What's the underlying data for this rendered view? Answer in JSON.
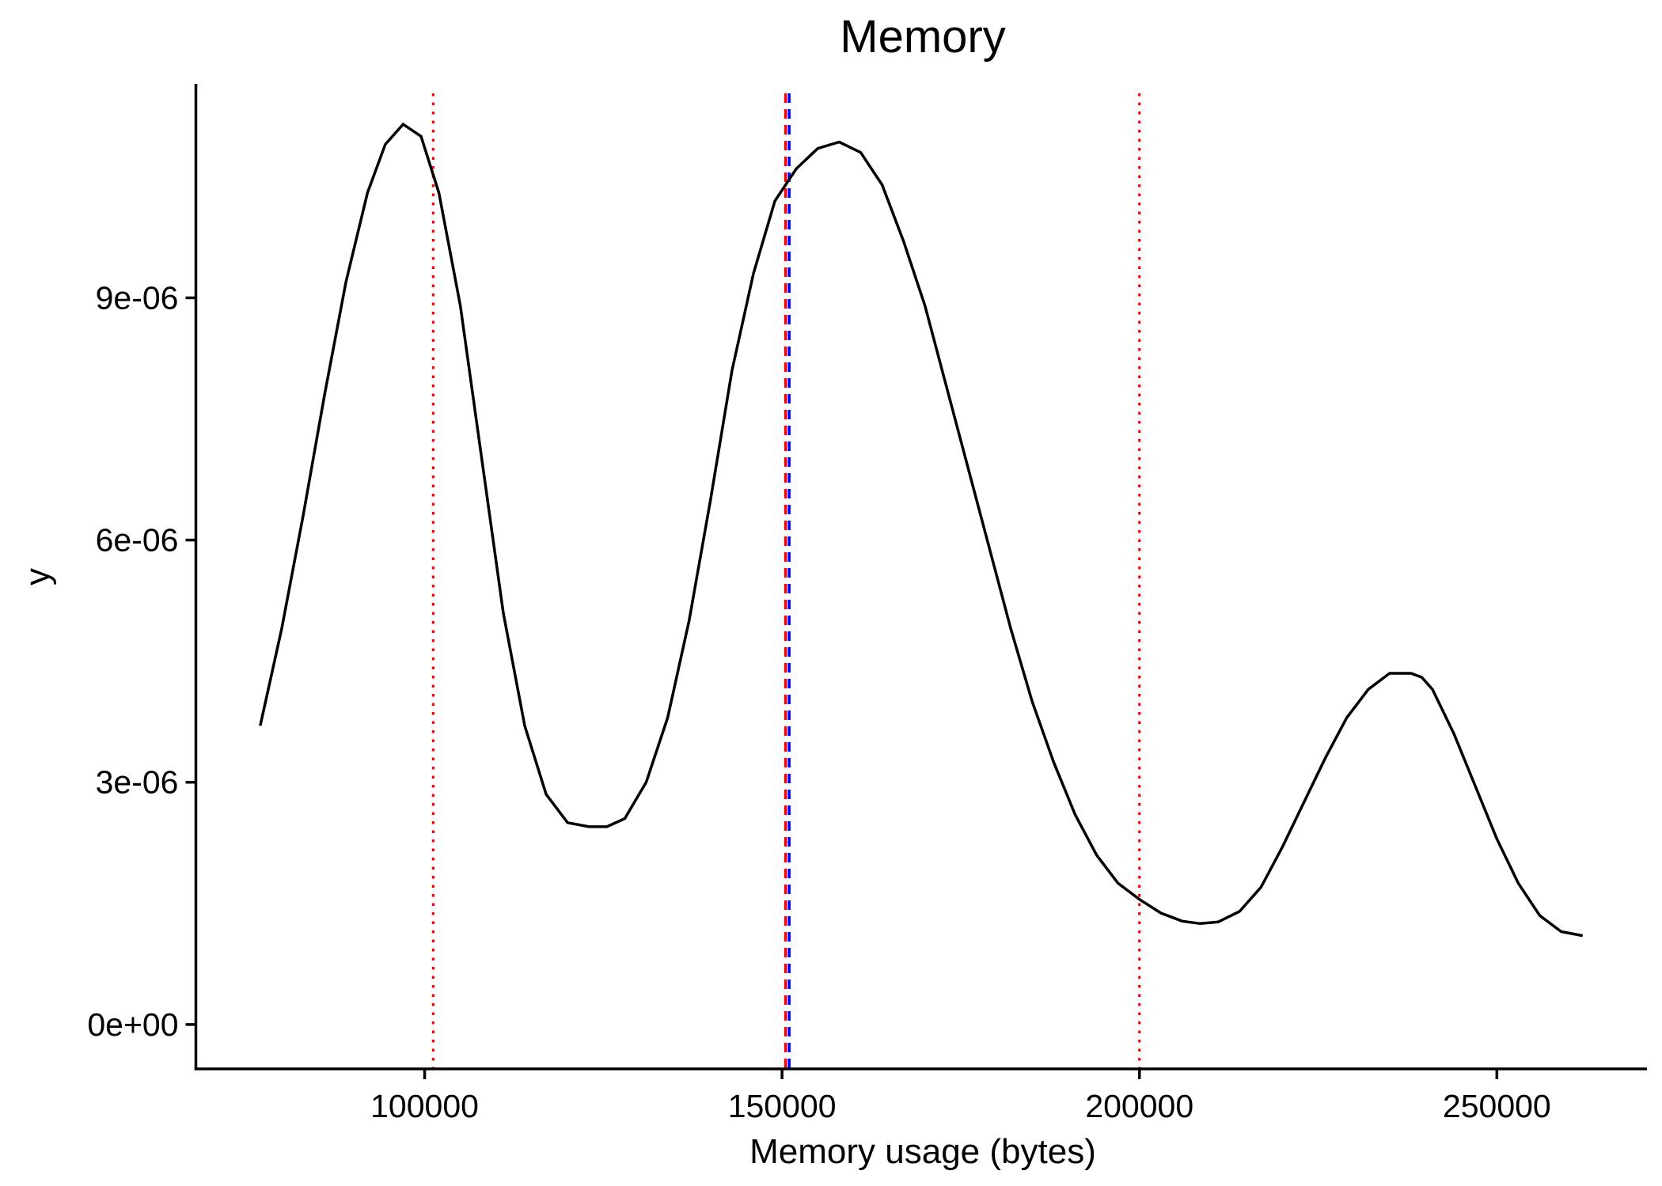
{
  "chart_data": {
    "type": "line",
    "title": "Memory",
    "xlabel": "Memory usage (bytes)",
    "ylabel": "y",
    "xlim": [
      68000,
      271000
    ],
    "ylim": [
      -5.5e-07,
      1.165e-05
    ],
    "x_ticks": [
      {
        "value": 100000,
        "label": "100000"
      },
      {
        "value": 150000,
        "label": "150000"
      },
      {
        "value": 200000,
        "label": "200000"
      },
      {
        "value": 250000,
        "label": "250000"
      }
    ],
    "y_ticks": [
      {
        "value": 0,
        "label": "0e+00"
      },
      {
        "value": 3e-06,
        "label": "3e-06"
      },
      {
        "value": 6e-06,
        "label": "6e-06"
      },
      {
        "value": 9e-06,
        "label": "9e-06"
      }
    ],
    "grid": false,
    "series": [
      {
        "color": "#000000",
        "x": [
          77000,
          80000,
          83000,
          86000,
          89000,
          92000,
          94500,
          97000,
          99500,
          102000,
          105000,
          108000,
          111000,
          114000,
          117000,
          120000,
          123000,
          125500,
          128000,
          131000,
          134000,
          137000,
          140000,
          143000,
          146000,
          149000,
          152000,
          155000,
          158000,
          161000,
          164000,
          167000,
          170000,
          173000,
          176000,
          179000,
          182000,
          185000,
          188000,
          191000,
          194000,
          197000,
          200000,
          203000,
          206000,
          208500,
          211000,
          214000,
          217000,
          220000,
          223000,
          226000,
          229000,
          232000,
          235000,
          238000,
          239500,
          241000,
          244000,
          247000,
          250000,
          253000,
          256000,
          259000,
          262000
        ],
        "y": [
          3.7e-06,
          4.9e-06,
          6.3e-06,
          7.8e-06,
          9.2e-06,
          1.03e-05,
          1.09e-05,
          1.115e-05,
          1.1e-05,
          1.03e-05,
          8.9e-06,
          7e-06,
          5.1e-06,
          3.7e-06,
          2.85e-06,
          2.5e-06,
          2.45e-06,
          2.45e-06,
          2.55e-06,
          3e-06,
          3.8e-06,
          5e-06,
          6.5e-06,
          8.1e-06,
          9.3e-06,
          1.02e-05,
          1.06e-05,
          1.085e-05,
          1.093e-05,
          1.08e-05,
          1.04e-05,
          9.7e-06,
          8.9e-06,
          7.9e-06,
          6.9e-06,
          5.9e-06,
          4.9e-06,
          4e-06,
          3.25e-06,
          2.6e-06,
          2.1e-06,
          1.75e-06,
          1.55e-06,
          1.38e-06,
          1.28e-06,
          1.25e-06,
          1.27e-06,
          1.4e-06,
          1.7e-06,
          2.2e-06,
          2.75e-06,
          3.3e-06,
          3.8e-06,
          4.15e-06,
          4.35e-06,
          4.35e-06,
          4.3e-06,
          4.15e-06,
          3.6e-06,
          2.95e-06,
          2.3e-06,
          1.75e-06,
          1.35e-06,
          1.15e-06,
          1.1e-06
        ]
      }
    ],
    "vlines": [
      {
        "x": 101200,
        "color": "#ff0000",
        "style": "dotted"
      },
      {
        "x": 150500,
        "color": "#ff0000",
        "style": "dashed"
      },
      {
        "x": 151000,
        "color": "#0000ff",
        "style": "dashed"
      },
      {
        "x": 200000,
        "color": "#ff0000",
        "style": "dotted"
      }
    ]
  }
}
